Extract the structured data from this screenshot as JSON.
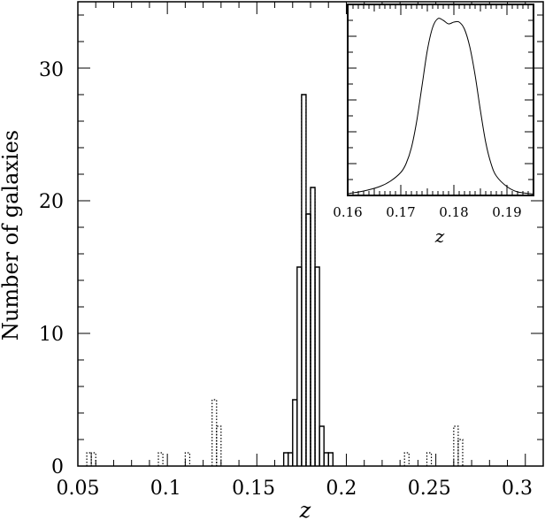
{
  "chart_data": [
    {
      "type": "bar",
      "histogram": true,
      "xlabel": "z",
      "ylabel": "Number of galaxies",
      "xlim": [
        0.05,
        0.31
      ],
      "ylim": [
        0,
        35
      ],
      "x_ticks": [
        "0.05",
        "0.1",
        "0.15",
        "0.2",
        "0.25",
        "0.3"
      ],
      "y_ticks": [
        "0",
        "10",
        "20",
        "30"
      ],
      "bin_width": 0.0025,
      "series": [
        {
          "style": "solid",
          "bins": [
            {
              "x0": 0.165,
              "x1": 0.1675,
              "count": 1
            },
            {
              "x0": 0.1675,
              "x1": 0.17,
              "count": 1
            },
            {
              "x0": 0.17,
              "x1": 0.1725,
              "count": 5
            },
            {
              "x0": 0.1725,
              "x1": 0.175,
              "count": 15
            },
            {
              "x0": 0.175,
              "x1": 0.1775,
              "count": 28
            },
            {
              "x0": 0.1775,
              "x1": 0.18,
              "count": 19
            },
            {
              "x0": 0.18,
              "x1": 0.1825,
              "count": 21
            },
            {
              "x0": 0.1825,
              "x1": 0.185,
              "count": 15
            },
            {
              "x0": 0.185,
              "x1": 0.1875,
              "count": 3
            },
            {
              "x0": 0.1875,
              "x1": 0.19,
              "count": 1
            },
            {
              "x0": 0.19,
              "x1": 0.1925,
              "count": 1
            }
          ]
        },
        {
          "style": "dotted",
          "bins": [
            {
              "x0": 0.055,
              "x1": 0.0575,
              "count": 1
            },
            {
              "x0": 0.0575,
              "x1": 0.06,
              "count": 1
            },
            {
              "x0": 0.095,
              "x1": 0.0975,
              "count": 1
            },
            {
              "x0": 0.11,
              "x1": 0.1125,
              "count": 1
            },
            {
              "x0": 0.125,
              "x1": 0.1275,
              "count": 5
            },
            {
              "x0": 0.1275,
              "x1": 0.13,
              "count": 3
            },
            {
              "x0": 0.175,
              "x1": 0.1775,
              "count": 28
            },
            {
              "x0": 0.1775,
              "x1": 0.18,
              "count": 19
            },
            {
              "x0": 0.18,
              "x1": 0.1825,
              "count": 21
            },
            {
              "x0": 0.2325,
              "x1": 0.235,
              "count": 1
            },
            {
              "x0": 0.245,
              "x1": 0.2475,
              "count": 1
            },
            {
              "x0": 0.26,
              "x1": 0.2625,
              "count": 3
            },
            {
              "x0": 0.2625,
              "x1": 0.265,
              "count": 2
            }
          ]
        }
      ]
    },
    {
      "type": "line",
      "xlabel": "z",
      "xlim": [
        0.16,
        0.195
      ],
      "ylim": [
        0,
        1.08
      ],
      "x_ticks": [
        "0.16",
        "0.17",
        "0.18",
        "0.19"
      ],
      "series": [
        {
          "x": [
            0.16,
            0.163,
            0.166,
            0.168,
            0.17,
            0.171,
            0.172,
            0.173,
            0.174,
            0.175,
            0.176,
            0.177,
            0.178,
            0.179,
            0.18,
            0.181,
            0.182,
            0.183,
            0.184,
            0.185,
            0.186,
            0.187,
            0.188,
            0.19,
            0.192,
            0.195
          ],
          "y": [
            0.01,
            0.025,
            0.05,
            0.08,
            0.13,
            0.18,
            0.27,
            0.42,
            0.62,
            0.82,
            0.95,
            1.0,
            0.99,
            0.97,
            0.98,
            0.98,
            0.94,
            0.84,
            0.68,
            0.48,
            0.3,
            0.18,
            0.11,
            0.05,
            0.02,
            0.008
          ]
        }
      ]
    }
  ]
}
